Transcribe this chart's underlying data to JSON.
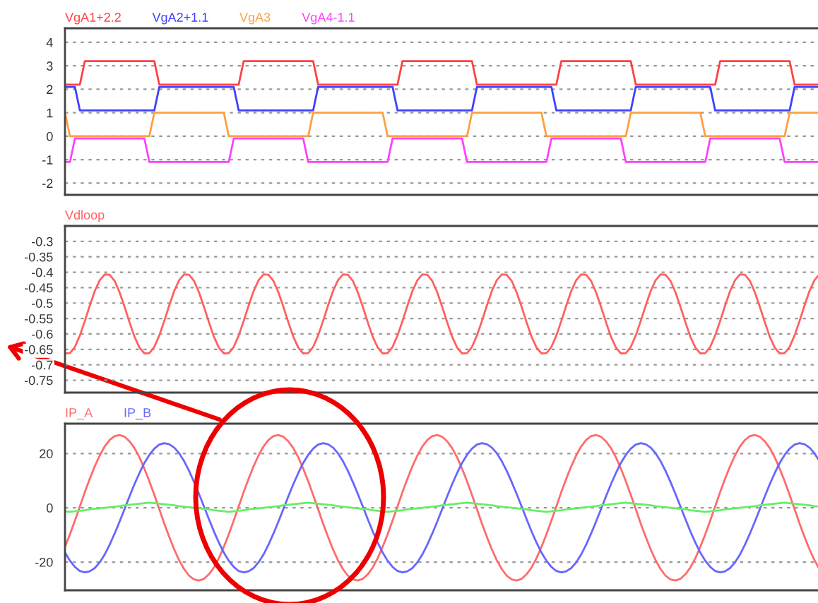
{
  "chart_data": [
    {
      "type": "line",
      "tick_labels": "y",
      "grid": "y",
      "ylim": [
        -2.5,
        4.6
      ],
      "yticks": [
        -2,
        -1,
        0,
        1,
        2,
        3,
        4
      ],
      "categories": [
        null,
        null,
        null,
        null,
        null,
        null,
        null,
        null,
        null,
        null,
        null,
        null,
        null,
        null,
        null,
        null,
        null,
        null,
        null,
        null,
        null,
        null,
        null,
        null,
        null,
        null,
        null,
        null,
        null,
        null,
        null,
        null,
        null,
        null,
        null,
        null,
        null,
        null,
        null,
        null,
        null,
        null,
        null,
        null,
        null,
        null,
        null,
        null,
        null,
        null,
        null,
        null,
        null,
        null,
        null,
        null,
        null,
        null,
        null,
        null,
        null,
        null,
        null,
        null,
        null,
        null,
        null,
        null,
        null,
        null,
        null,
        null,
        null,
        null,
        null,
        null,
        null,
        null,
        null,
        null,
        null,
        null,
        null,
        null,
        null,
        null,
        null,
        null,
        null,
        null,
        null,
        null,
        null,
        null,
        null,
        null,
        null,
        null,
        null,
        null,
        null,
        null,
        null,
        null,
        null,
        null,
        null,
        null,
        null,
        null,
        null,
        null,
        null,
        null,
        null,
        null,
        null,
        null,
        null,
        null,
        null,
        null,
        null,
        null,
        null,
        null,
        null,
        null,
        null,
        null,
        null,
        null,
        null,
        null,
        null,
        null,
        null,
        null,
        null,
        null,
        null,
        null,
        null,
        null,
        null,
        null,
        null,
        null,
        null,
        null,
        null,
        null,
        null
      ],
      "series": [
        {
          "name": "VgA1+2.2",
          "color": "#ff4040",
          "values": [
            2.2,
            2.2,
            2.2,
            2.2,
            3.2,
            3.2,
            3.2,
            3.2,
            3.2,
            3.2,
            3.2,
            3.2,
            3.2,
            3.2,
            3.2,
            3.2,
            3.2,
            3.2,
            3.2,
            2.2,
            2.2,
            2.2,
            2.2,
            2.2,
            2.2,
            2.2,
            2.2,
            2.2,
            2.2,
            2.2,
            2.2,
            2.2,
            2.2,
            2.2,
            2.2,
            2.2,
            3.2,
            3.2,
            3.2,
            3.2,
            3.2,
            3.2,
            3.2,
            3.2,
            3.2,
            3.2,
            3.2,
            3.2,
            3.2,
            3.2,
            3.2,
            2.2,
            2.2,
            2.2,
            2.2,
            2.2,
            2.2,
            2.2,
            2.2,
            2.2,
            2.2,
            2.2,
            2.2,
            2.2,
            2.2,
            2.2,
            2.2,
            2.2,
            3.2,
            3.2,
            3.2,
            3.2,
            3.2,
            3.2,
            3.2,
            3.2,
            3.2,
            3.2,
            3.2,
            3.2,
            3.2,
            3.2,
            3.2,
            2.2,
            2.2,
            2.2,
            2.2,
            2.2,
            2.2,
            2.2,
            2.2,
            2.2,
            2.2,
            2.2,
            2.2,
            2.2,
            2.2,
            2.2,
            2.2,
            2.2,
            3.2,
            3.2,
            3.2,
            3.2,
            3.2,
            3.2,
            3.2,
            3.2,
            3.2,
            3.2,
            3.2,
            3.2,
            3.2,
            3.2,
            3.2,
            2.2,
            2.2,
            2.2,
            2.2,
            2.2,
            2.2,
            2.2,
            2.2,
            2.2,
            2.2,
            2.2,
            2.2,
            2.2,
            2.2,
            2.2,
            2.2,
            2.2,
            3.2,
            3.2,
            3.2,
            3.2,
            3.2,
            3.2,
            3.2,
            3.2,
            3.2,
            3.2,
            3.2,
            3.2,
            3.2,
            3.2,
            3.2,
            2.2,
            2.2,
            2.2,
            2.2,
            2.2,
            2.2
          ]
        },
        {
          "name": "VgA2+1.1",
          "color": "#4040ff",
          "values": [
            2.1,
            2.1,
            2.1,
            1.1,
            1.1,
            1.1,
            1.1,
            1.1,
            1.1,
            1.1,
            1.1,
            1.1,
            1.1,
            1.1,
            1.1,
            1.1,
            1.1,
            1.1,
            1.1,
            2.1,
            2.1,
            2.1,
            2.1,
            2.1,
            2.1,
            2.1,
            2.1,
            2.1,
            2.1,
            2.1,
            2.1,
            2.1,
            2.1,
            2.1,
            2.1,
            1.1,
            1.1,
            1.1,
            1.1,
            1.1,
            1.1,
            1.1,
            1.1,
            1.1,
            1.1,
            1.1,
            1.1,
            1.1,
            1.1,
            1.1,
            1.1,
            2.1,
            2.1,
            2.1,
            2.1,
            2.1,
            2.1,
            2.1,
            2.1,
            2.1,
            2.1,
            2.1,
            2.1,
            2.1,
            2.1,
            2.1,
            2.1,
            1.1,
            1.1,
            1.1,
            1.1,
            1.1,
            1.1,
            1.1,
            1.1,
            1.1,
            1.1,
            1.1,
            1.1,
            1.1,
            1.1,
            1.1,
            1.1,
            2.1,
            2.1,
            2.1,
            2.1,
            2.1,
            2.1,
            2.1,
            2.1,
            2.1,
            2.1,
            2.1,
            2.1,
            2.1,
            2.1,
            2.1,
            2.1,
            1.1,
            1.1,
            1.1,
            1.1,
            1.1,
            1.1,
            1.1,
            1.1,
            1.1,
            1.1,
            1.1,
            1.1,
            1.1,
            1.1,
            1.1,
            1.1,
            2.1,
            2.1,
            2.1,
            2.1,
            2.1,
            2.1,
            2.1,
            2.1,
            2.1,
            2.1,
            2.1,
            2.1,
            2.1,
            2.1,
            2.1,
            2.1,
            1.1,
            1.1,
            1.1,
            1.1,
            1.1,
            1.1,
            1.1,
            1.1,
            1.1,
            1.1,
            1.1,
            1.1,
            1.1,
            1.1,
            1.1,
            1.1,
            2.1,
            2.1,
            2.1,
            2.1,
            2.1,
            2.1
          ]
        },
        {
          "name": "VgA3",
          "color": "#ffa040",
          "values": [
            1,
            0,
            0,
            0,
            0,
            0,
            0,
            0,
            0,
            0,
            0,
            0,
            0,
            0,
            0,
            0,
            0,
            0,
            1,
            1,
            1,
            1,
            1,
            1,
            1,
            1,
            1,
            1,
            1,
            1,
            1,
            1,
            1,
            0,
            0,
            0,
            0,
            0,
            0,
            0,
            0,
            0,
            0,
            0,
            0,
            0,
            0,
            0,
            0,
            0,
            1,
            1,
            1,
            1,
            1,
            1,
            1,
            1,
            1,
            1,
            1,
            1,
            1,
            1,
            1,
            0,
            0,
            0,
            0,
            0,
            0,
            0,
            0,
            0,
            0,
            0,
            0,
            0,
            0,
            0,
            0,
            0,
            1,
            1,
            1,
            1,
            1,
            1,
            1,
            1,
            1,
            1,
            1,
            1,
            1,
            1,
            1,
            0,
            0,
            0,
            0,
            0,
            0,
            0,
            0,
            0,
            0,
            0,
            0,
            0,
            0,
            0,
            0,
            0,
            1,
            1,
            1,
            1,
            1,
            1,
            1,
            1,
            1,
            1,
            1,
            1,
            1,
            1,
            1,
            0,
            0,
            0,
            0,
            0,
            0,
            0,
            0,
            0,
            0,
            0,
            0,
            0,
            0,
            0,
            0,
            0,
            1,
            1,
            1,
            1,
            1,
            1,
            1
          ]
        },
        {
          "name": "VgA4-1.1",
          "color": "#ff40ff",
          "values": [
            -1.1,
            -1.1,
            -0.1,
            -0.1,
            -0.1,
            -0.1,
            -0.1,
            -0.1,
            -0.1,
            -0.1,
            -0.1,
            -0.1,
            -0.1,
            -0.1,
            -0.1,
            -0.1,
            -0.1,
            -1.1,
            -1.1,
            -1.1,
            -1.1,
            -1.1,
            -1.1,
            -1.1,
            -1.1,
            -1.1,
            -1.1,
            -1.1,
            -1.1,
            -1.1,
            -1.1,
            -1.1,
            -1.1,
            -1.1,
            -0.1,
            -0.1,
            -0.1,
            -0.1,
            -0.1,
            -0.1,
            -0.1,
            -0.1,
            -0.1,
            -0.1,
            -0.1,
            -0.1,
            -0.1,
            -0.1,
            -0.1,
            -1.1,
            -1.1,
            -1.1,
            -1.1,
            -1.1,
            -1.1,
            -1.1,
            -1.1,
            -1.1,
            -1.1,
            -1.1,
            -1.1,
            -1.1,
            -1.1,
            -1.1,
            -1.1,
            -1.1,
            -0.1,
            -0.1,
            -0.1,
            -0.1,
            -0.1,
            -0.1,
            -0.1,
            -0.1,
            -0.1,
            -0.1,
            -0.1,
            -0.1,
            -0.1,
            -0.1,
            -0.1,
            -1.1,
            -1.1,
            -1.1,
            -1.1,
            -1.1,
            -1.1,
            -1.1,
            -1.1,
            -1.1,
            -1.1,
            -1.1,
            -1.1,
            -1.1,
            -1.1,
            -1.1,
            -1.1,
            -1.1,
            -0.1,
            -0.1,
            -0.1,
            -0.1,
            -0.1,
            -0.1,
            -0.1,
            -0.1,
            -0.1,
            -0.1,
            -0.1,
            -0.1,
            -0.1,
            -0.1,
            -0.1,
            -1.1,
            -1.1,
            -1.1,
            -1.1,
            -1.1,
            -1.1,
            -1.1,
            -1.1,
            -1.1,
            -1.1,
            -1.1,
            -1.1,
            -1.1,
            -1.1,
            -1.1,
            -1.1,
            -1.1,
            -0.1,
            -0.1,
            -0.1,
            -0.1,
            -0.1,
            -0.1,
            -0.1,
            -0.1,
            -0.1,
            -0.1,
            -0.1,
            -0.1,
            -0.1,
            -0.1,
            -0.1,
            -1.1,
            -1.1,
            -1.1,
            -1.1,
            -1.1,
            -1.1,
            -1.1,
            -1.1
          ]
        }
      ]
    },
    {
      "type": "line",
      "tick_labels": "y",
      "grid": "y",
      "ylim": [
        -0.79,
        -0.25
      ],
      "yticks": [
        -0.75,
        -0.7,
        -0.65,
        -0.6,
        -0.55,
        -0.5,
        -0.45,
        -0.4,
        -0.35,
        -0.3
      ],
      "categories": [
        null,
        null,
        null,
        null,
        null,
        null,
        null,
        null,
        null,
        null,
        null,
        null,
        null,
        null,
        null,
        null,
        null,
        null,
        null,
        null,
        null,
        null,
        null,
        null,
        null,
        null,
        null,
        null,
        null,
        null,
        null,
        null,
        null,
        null,
        null,
        null,
        null,
        null,
        null,
        null,
        null,
        null,
        null,
        null,
        null,
        null,
        null,
        null,
        null,
        null,
        null,
        null,
        null,
        null,
        null,
        null,
        null,
        null,
        null,
        null,
        null,
        null,
        null,
        null,
        null,
        null,
        null,
        null,
        null,
        null,
        null,
        null,
        null,
        null,
        null,
        null,
        null,
        null,
        null,
        null,
        null,
        null,
        null,
        null,
        null,
        null,
        null,
        null,
        null,
        null,
        null,
        null,
        null,
        null,
        null,
        null,
        null,
        null,
        null,
        null,
        null,
        null,
        null,
        null,
        null,
        null,
        null,
        null,
        null,
        null,
        null,
        null,
        null,
        null,
        null,
        null,
        null,
        null,
        null,
        null,
        null,
        null,
        null,
        null,
        null,
        null,
        null,
        null,
        null,
        null,
        null,
        null,
        null,
        null,
        null,
        null,
        null,
        null,
        null,
        null,
        null,
        null,
        null,
        null,
        null,
        null,
        null,
        null,
        null,
        null,
        null,
        null,
        null
      ],
      "series": [
        {
          "name": "Vdloop",
          "color": "#ff6060",
          "values": [
            -0.663,
            -0.662,
            -0.642,
            -0.605,
            -0.558,
            -0.508,
            -0.461,
            -0.426,
            -0.407,
            -0.408,
            -0.428,
            -0.465,
            -0.512,
            -0.562,
            -0.609,
            -0.644,
            -0.663,
            -0.662,
            -0.642,
            -0.605,
            -0.558,
            -0.508,
            -0.461,
            -0.426,
            -0.407,
            -0.408,
            -0.428,
            -0.465,
            -0.512,
            -0.562,
            -0.609,
            -0.644,
            -0.663,
            -0.662,
            -0.642,
            -0.605,
            -0.558,
            -0.508,
            -0.461,
            -0.426,
            -0.407,
            -0.408,
            -0.428,
            -0.465,
            -0.512,
            -0.562,
            -0.609,
            -0.644,
            -0.663,
            -0.662,
            -0.642,
            -0.605,
            -0.558,
            -0.508,
            -0.461,
            -0.426,
            -0.407,
            -0.408,
            -0.428,
            -0.465,
            -0.512,
            -0.562,
            -0.609,
            -0.644,
            -0.663,
            -0.662,
            -0.642,
            -0.605,
            -0.558,
            -0.508,
            -0.461,
            -0.426,
            -0.407,
            -0.408,
            -0.428,
            -0.465,
            -0.512,
            -0.562,
            -0.609,
            -0.644,
            -0.663,
            -0.662,
            -0.642,
            -0.605,
            -0.558,
            -0.508,
            -0.461,
            -0.426,
            -0.407,
            -0.408,
            -0.428,
            -0.465,
            -0.512,
            -0.562,
            -0.609,
            -0.644,
            -0.663,
            -0.662,
            -0.642,
            -0.605,
            -0.558,
            -0.508,
            -0.461,
            -0.426,
            -0.407,
            -0.408,
            -0.428,
            -0.465,
            -0.512,
            -0.562,
            -0.609,
            -0.644,
            -0.663,
            -0.662,
            -0.642,
            -0.605,
            -0.558,
            -0.508,
            -0.461,
            -0.426,
            -0.407,
            -0.408,
            -0.428,
            -0.465,
            -0.512,
            -0.562,
            -0.609,
            -0.644,
            -0.663,
            -0.662,
            -0.642,
            -0.605,
            -0.558,
            -0.508,
            -0.461,
            -0.426,
            -0.407,
            -0.408,
            -0.428,
            -0.465,
            -0.512,
            -0.562,
            -0.609,
            -0.644,
            -0.663,
            -0.662,
            -0.642,
            -0.605,
            -0.558,
            -0.508,
            -0.461,
            -0.426,
            -0.407
          ]
        }
      ]
    },
    {
      "type": "line",
      "tick_labels": "y",
      "grid": "y",
      "ylim": [
        -30.4,
        31
      ],
      "yticks": [
        -20,
        0,
        20
      ],
      "categories": [
        null,
        null,
        null,
        null,
        null,
        null,
        null,
        null,
        null,
        null,
        null,
        null,
        null,
        null,
        null,
        null,
        null,
        null,
        null,
        null,
        null,
        null,
        null,
        null,
        null,
        null,
        null,
        null,
        null,
        null,
        null,
        null,
        null,
        null,
        null,
        null,
        null,
        null,
        null,
        null,
        null,
        null,
        null,
        null,
        null,
        null,
        null,
        null,
        null,
        null,
        null,
        null,
        null,
        null,
        null,
        null,
        null,
        null,
        null,
        null,
        null,
        null,
        null,
        null,
        null,
        null,
        null,
        null,
        null,
        null,
        null,
        null,
        null,
        null,
        null,
        null,
        null,
        null,
        null,
        null,
        null,
        null,
        null,
        null,
        null,
        null,
        null,
        null,
        null,
        null,
        null,
        null,
        null,
        null,
        null,
        null,
        null,
        null,
        null,
        null,
        null,
        null,
        null,
        null,
        null,
        null,
        null,
        null,
        null,
        null,
        null,
        null,
        null,
        null,
        null,
        null,
        null,
        null,
        null,
        null,
        null,
        null,
        null,
        null,
        null,
        null,
        null,
        null,
        null,
        null,
        null,
        null,
        null,
        null,
        null,
        null,
        null,
        null,
        null,
        null,
        null,
        null,
        null,
        null,
        null,
        null,
        null,
        null,
        null,
        null,
        null,
        null,
        null
      ],
      "series": [
        {
          "name": "IP_A",
          "color": "#ff6b6b",
          "values": [
            -14.4,
            -9.8,
            -4.7,
            0.5,
            5.8,
            10.7,
            15.3,
            19.3,
            22.6,
            25.0,
            26.4,
            26.8,
            26.2,
            24.5,
            22.0,
            18.6,
            14.4,
            9.8,
            4.7,
            -0.5,
            -5.8,
            -10.7,
            -15.3,
            -19.3,
            -22.6,
            -25.0,
            -26.4,
            -26.8,
            -26.2,
            -24.5,
            -22.0,
            -18.6,
            -14.4,
            -9.8,
            -4.7,
            0.5,
            5.8,
            10.7,
            15.3,
            19.3,
            22.6,
            25.0,
            26.4,
            26.8,
            26.2,
            24.5,
            22.0,
            18.6,
            14.4,
            9.8,
            4.7,
            -0.5,
            -5.8,
            -10.7,
            -15.3,
            -19.3,
            -22.6,
            -25.0,
            -26.4,
            -26.8,
            -26.2,
            -24.5,
            -22.0,
            -18.6,
            -14.4,
            -9.8,
            -4.7,
            0.5,
            5.8,
            10.7,
            15.3,
            19.3,
            22.6,
            25.0,
            26.4,
            26.8,
            26.2,
            24.5,
            22.0,
            18.6,
            14.4,
            9.8,
            4.7,
            -0.5,
            -5.8,
            -10.7,
            -15.3,
            -19.3,
            -22.6,
            -25.0,
            -26.4,
            -26.8,
            -26.2,
            -24.5,
            -22.0,
            -18.6,
            -14.4,
            -9.8,
            -4.7,
            0.5,
            5.8,
            10.7,
            15.3,
            19.3,
            22.6,
            25.0,
            26.4,
            26.8,
            26.2,
            24.5,
            22.0,
            18.6,
            14.4,
            9.8,
            4.7,
            -0.5,
            -5.8,
            -10.7,
            -15.3,
            -19.3,
            -22.6,
            -25.0,
            -26.4,
            -26.8,
            -26.2,
            -24.5,
            -22.0,
            -18.6,
            -14.4,
            -9.8,
            -4.7,
            0.5,
            5.8,
            10.7,
            15.3,
            19.3,
            22.6,
            25.0,
            26.4,
            26.8,
            26.2,
            24.5,
            22.0,
            18.6,
            14.4,
            9.8,
            4.7,
            -0.5,
            -5.8,
            -10.7,
            -15.3,
            -19.3,
            -22.6
          ]
        },
        {
          "name": "IP_B",
          "color": "#6666ff",
          "values": [
            -16.5,
            -19.5,
            -21.8,
            -23.3,
            -23.8,
            -23.4,
            -22.2,
            -20.1,
            -17.2,
            -13.6,
            -9.5,
            -5.1,
            -0.5,
            4.2,
            8.7,
            12.8,
            16.5,
            19.5,
            21.8,
            23.3,
            23.8,
            23.4,
            22.2,
            20.1,
            17.2,
            13.6,
            9.5,
            5.1,
            0.5,
            -4.2,
            -8.7,
            -12.8,
            -16.5,
            -19.5,
            -21.8,
            -23.3,
            -23.8,
            -23.4,
            -22.2,
            -20.1,
            -17.2,
            -13.6,
            -9.5,
            -5.1,
            -0.5,
            4.2,
            8.7,
            12.8,
            16.5,
            19.5,
            21.8,
            23.3,
            23.8,
            23.4,
            22.2,
            20.1,
            17.2,
            13.6,
            9.5,
            5.1,
            0.5,
            -4.2,
            -8.7,
            -12.8,
            -16.5,
            -19.5,
            -21.8,
            -23.3,
            -23.8,
            -23.4,
            -22.2,
            -20.1,
            -17.2,
            -13.6,
            -9.5,
            -5.1,
            -0.5,
            4.2,
            8.7,
            12.8,
            16.5,
            19.5,
            21.8,
            23.3,
            23.8,
            23.4,
            22.2,
            20.1,
            17.2,
            13.6,
            9.5,
            5.1,
            0.5,
            -4.2,
            -8.7,
            -12.8,
            -16.5,
            -19.5,
            -21.8,
            -23.3,
            -23.8,
            -23.4,
            -22.2,
            -20.1,
            -17.2,
            -13.6,
            -9.5,
            -5.1,
            -0.5,
            4.2,
            8.7,
            12.8,
            16.5,
            19.5,
            21.8,
            23.3,
            23.8,
            23.4,
            22.2,
            20.1,
            17.2,
            13.6,
            9.5,
            5.1,
            0.5,
            -4.2,
            -8.7,
            -12.8,
            -16.5,
            -19.5,
            -21.8,
            -23.3,
            -23.8,
            -23.4,
            -22.2,
            -20.1,
            -17.2,
            -13.6,
            -9.5,
            -5.1,
            -0.5,
            4.2,
            8.7,
            12.8,
            16.5,
            19.5,
            21.8,
            23.3,
            23.8,
            23.4,
            22.2,
            20.1,
            17.2
          ]
        },
        {
          "color": "#66ee66",
          "values": [
            -1.3,
            -1.5,
            -1.3,
            -1.1,
            -0.9,
            -0.6,
            -0.4,
            -0.2,
            0.0,
            0.2,
            0.4,
            0.6,
            0.9,
            1.1,
            1.3,
            1.5,
            1.7,
            1.9,
            1.7,
            1.5,
            1.3,
            1.1,
            0.9,
            0.6,
            0.4,
            0.2,
            0.0,
            -0.2,
            -0.4,
            -0.6,
            -0.9,
            -1.1,
            -1.3,
            -1.5,
            -1.3,
            -1.1,
            -0.9,
            -0.6,
            -0.4,
            -0.2,
            0.0,
            0.2,
            0.4,
            0.6,
            0.9,
            1.1,
            1.3,
            1.5,
            1.7,
            1.9,
            1.7,
            1.5,
            1.3,
            1.1,
            0.9,
            0.6,
            0.4,
            0.2,
            0.0,
            -0.2,
            -0.4,
            -0.6,
            -0.9,
            -1.1,
            -1.3,
            -1.5,
            -1.3,
            -1.1,
            -0.9,
            -0.6,
            -0.4,
            -0.2,
            0.0,
            0.2,
            0.4,
            0.6,
            0.9,
            1.1,
            1.3,
            1.5,
            1.7,
            1.9,
            1.7,
            1.5,
            1.3,
            1.1,
            0.9,
            0.6,
            0.4,
            0.2,
            0.0,
            -0.2,
            -0.4,
            -0.6,
            -0.9,
            -1.1,
            -1.3,
            -1.5,
            -1.3,
            -1.1,
            -0.9,
            -0.6,
            -0.4,
            -0.2,
            0.0,
            0.2,
            0.4,
            0.6,
            0.9,
            1.1,
            1.3,
            1.5,
            1.7,
            1.9,
            1.7,
            1.5,
            1.3,
            1.1,
            0.9,
            0.6,
            0.4,
            0.2,
            0.0,
            -0.2,
            -0.4,
            -0.6,
            -0.9,
            -1.1,
            -1.3,
            -1.5,
            -1.3,
            -1.1,
            -0.9,
            -0.6,
            -0.4,
            -0.2,
            0.0,
            0.2,
            0.4,
            0.6,
            0.9,
            1.1,
            1.3,
            1.5,
            1.7,
            1.9,
            1.7,
            1.5,
            1.3,
            1.1,
            0.9,
            0.6,
            0.4
          ]
        }
      ]
    }
  ]
}
